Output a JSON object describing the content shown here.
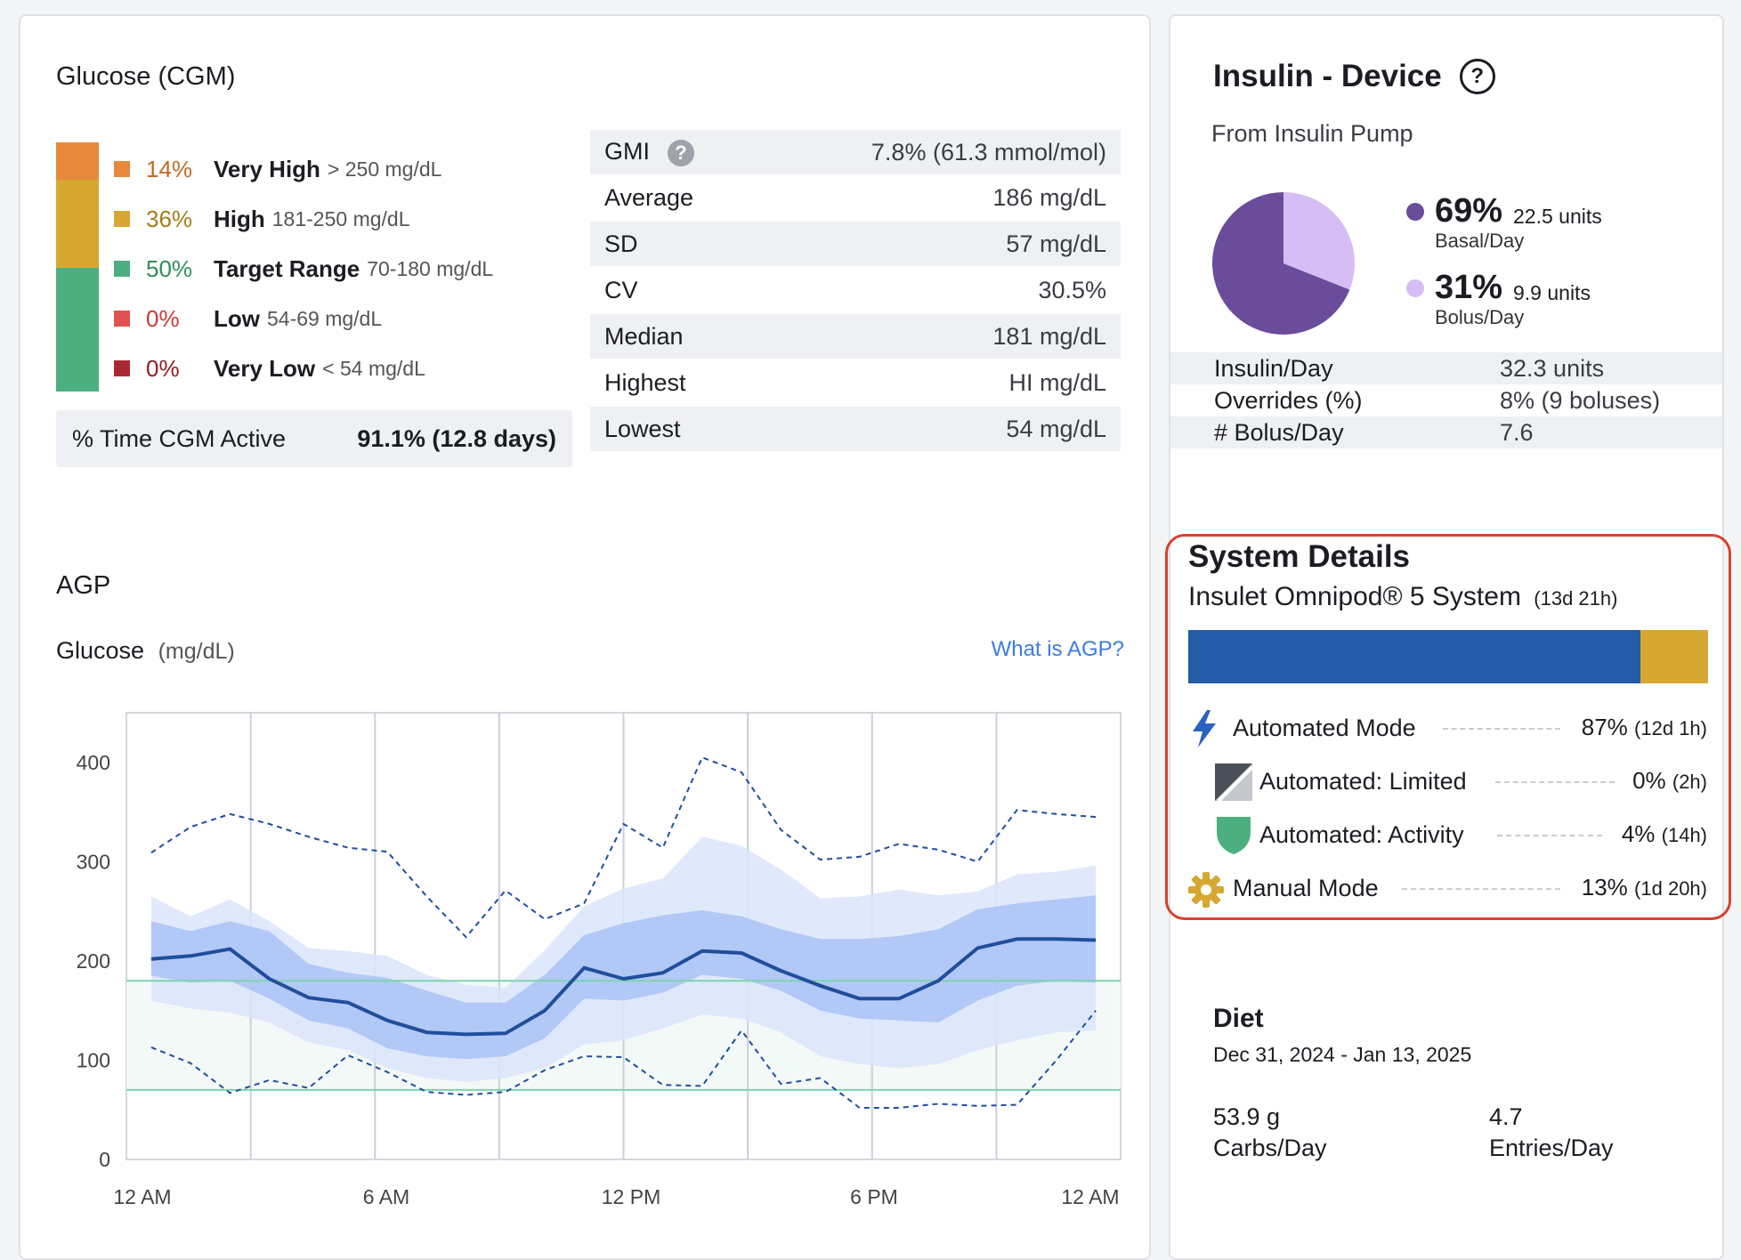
{
  "glucose": {
    "title": "Glucose (CGM)",
    "tir": [
      {
        "pct": "14%",
        "name": "Very High",
        "range": "> 250 mg/dL",
        "color": "#e8883a",
        "pct_color": "#c16a20",
        "value": 14
      },
      {
        "pct": "36%",
        "name": "High",
        "range": "181-250 mg/dL",
        "color": "#d6a832",
        "pct_color": "#a57d16",
        "value": 36
      },
      {
        "pct": "50%",
        "name": "Target Range",
        "range": "70-180 mg/dL",
        "color": "#4caf80",
        "pct_color": "#2f8e5e",
        "value": 50
      },
      {
        "pct": "0%",
        "name": "Low",
        "range": "54-69 mg/dL",
        "color": "#e0524f",
        "pct_color": "#c93a38",
        "value": 0
      },
      {
        "pct": "0%",
        "name": "Very Low",
        "range": "< 54 mg/dL",
        "color": "#a92a2e",
        "pct_color": "#8f1d22",
        "value": 0
      }
    ],
    "cgm_active_label": "% Time CGM Active",
    "cgm_active_value": "91.1% (12.8 days)",
    "stats": [
      {
        "label": "GMI",
        "value": "7.8% (61.3 mmol/mol)",
        "help": "?"
      },
      {
        "label": "Average",
        "value": "186 mg/dL"
      },
      {
        "label": "SD",
        "value": "57 mg/dL"
      },
      {
        "label": "CV",
        "value": "30.5%"
      },
      {
        "label": "Median",
        "value": "181 mg/dL"
      },
      {
        "label": "Highest",
        "value": "HI mg/dL"
      },
      {
        "label": "Lowest",
        "value": "54 mg/dL"
      }
    ]
  },
  "agp": {
    "title": "AGP",
    "subtitle": "Glucose",
    "unit": "(mg/dL)",
    "link": "What is AGP?"
  },
  "chart_data": {
    "type": "area",
    "title": "AGP",
    "ylabel": "Glucose (mg/dL)",
    "ylim": [
      0,
      450
    ],
    "yticks": [
      0,
      100,
      200,
      300,
      400
    ],
    "xticks": [
      "12 AM",
      "6 AM",
      "12 PM",
      "6 PM",
      "12 AM"
    ],
    "xlim": [
      0,
      24
    ],
    "target_range": [
      70,
      180
    ],
    "grid": true,
    "x": [
      0,
      1,
      2,
      3,
      4,
      5,
      6,
      7,
      8,
      9,
      10,
      11,
      12,
      13,
      14,
      15,
      16,
      17,
      18,
      19,
      20,
      21,
      22,
      23,
      24
    ],
    "series": [
      {
        "name": "p95",
        "style": "dashed",
        "values": [
          309,
          335,
          348,
          338,
          325,
          314,
          310,
          265,
          224,
          271,
          242,
          258,
          338,
          314,
          405,
          390,
          332,
          302,
          305,
          318,
          312,
          300,
          352,
          348,
          345
        ]
      },
      {
        "name": "p90",
        "style": "band-light-top",
        "values": [
          265,
          245,
          262,
          240,
          213,
          210,
          205,
          186,
          176,
          173,
          211,
          255,
          273,
          283,
          325,
          316,
          292,
          263,
          265,
          272,
          266,
          270,
          287,
          290,
          296
        ]
      },
      {
        "name": "p75",
        "style": "band-dark-top",
        "values": [
          240,
          230,
          240,
          230,
          197,
          188,
          183,
          170,
          158,
          158,
          186,
          226,
          238,
          246,
          251,
          245,
          232,
          222,
          222,
          225,
          232,
          252,
          258,
          262,
          266
        ]
      },
      {
        "name": "median",
        "style": "solid",
        "values": [
          202,
          205,
          212,
          182,
          163,
          158,
          140,
          128,
          126,
          127,
          150,
          193,
          182,
          188,
          210,
          208,
          190,
          175,
          162,
          162,
          180,
          213,
          222,
          222,
          221
        ]
      },
      {
        "name": "p25",
        "style": "band-dark-bottom",
        "values": [
          185,
          178,
          180,
          162,
          140,
          132,
          112,
          104,
          101,
          104,
          122,
          162,
          160,
          168,
          186,
          182,
          170,
          150,
          142,
          140,
          138,
          160,
          175,
          180,
          178
        ]
      },
      {
        "name": "p10",
        "style": "band-light-bottom",
        "values": [
          160,
          152,
          148,
          138,
          118,
          110,
          92,
          82,
          78,
          82,
          92,
          116,
          120,
          132,
          146,
          142,
          128,
          104,
          96,
          92,
          96,
          110,
          120,
          128,
          130
        ]
      },
      {
        "name": "p5",
        "style": "dashed",
        "values": [
          113,
          97,
          67,
          80,
          72,
          105,
          88,
          68,
          65,
          68,
          90,
          104,
          103,
          75,
          74,
          130,
          76,
          82,
          52,
          52,
          56,
          54,
          55,
          100,
          150
        ]
      }
    ],
    "colors": {
      "median": "#1f4f9c",
      "band_dark": "#a6bff5",
      "band_light": "#dbe5fb",
      "dashed": "#1f4f9c",
      "target": "#7dd3b0",
      "target_fill": "#f3f9f6"
    }
  },
  "insulin": {
    "title": "Insulin - Device",
    "help": "?",
    "subtitle": "From Insulin Pump",
    "pie": [
      {
        "pct": "69%",
        "units": "22.5 units",
        "label": "Basal/Day",
        "value": 69,
        "color": "#6b4c9a"
      },
      {
        "pct": "31%",
        "units": "9.9 units",
        "label": "Bolus/Day",
        "value": 31,
        "color": "#d6bdf5"
      }
    ],
    "rows": [
      {
        "label": "Insulin/Day",
        "value": "32.3 units"
      },
      {
        "label": "Overrides (%)",
        "value": "8% (9 boluses)"
      },
      {
        "label": "# Bolus/Day",
        "value": "7.6"
      }
    ]
  },
  "system": {
    "title": "System Details",
    "device": "Insulet Omnipod® 5 System",
    "duration": "(13d 21h)",
    "bar": [
      {
        "value": 87,
        "color": "#245ca8"
      },
      {
        "value": 13,
        "color": "#d6a832"
      }
    ],
    "modes": [
      {
        "label": "Automated Mode",
        "pct": "87%",
        "dur": "(12d 1h)",
        "icon": "lightning-icon"
      },
      {
        "label": "Automated: Limited",
        "pct": "0%",
        "dur": "(2h)",
        "icon": "limited-icon"
      },
      {
        "label": "Automated: Activity",
        "pct": "4%",
        "dur": "(14h)",
        "icon": "shield-icon"
      },
      {
        "label": "Manual Mode",
        "pct": "13%",
        "dur": "(1d 20h)",
        "icon": "gear-icon"
      }
    ]
  },
  "diet": {
    "title": "Diet",
    "dates": "Dec 31, 2024 - Jan 13, 2025",
    "carbs_value": "53.9 g",
    "carbs_label": "Carbs/Day",
    "entries_value": "4.7",
    "entries_label": "Entries/Day"
  }
}
